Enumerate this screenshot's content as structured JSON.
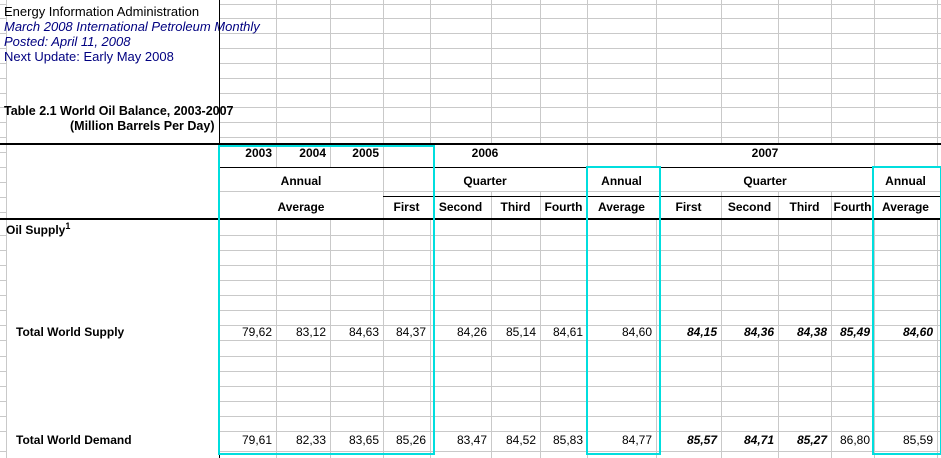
{
  "meta": {
    "info_lines": [
      "Energy Information Administration",
      "March 2008 International Petroleum Monthly",
      "Posted: April 11, 2008",
      "Next Update: Early May 2008"
    ],
    "title": "Table 2.1 World Oil Balance, 2003-2007",
    "subtitle": "(Million Barrels Per Day)"
  },
  "colors": {
    "highlight_border": "#00dede",
    "info_text": "#000080",
    "gridline": "#c9c9c9"
  },
  "header": {
    "years": [
      "2003",
      "2004",
      "2005",
      "2006",
      "2007"
    ],
    "annual_label": "Annual",
    "average_label": "Average",
    "quarter_label": "Quarter",
    "quarters": [
      "First",
      "Second",
      "Third",
      "Fourth"
    ]
  },
  "table": {
    "column_keys": [
      "2003",
      "2004",
      "2005",
      "2006-q1",
      "2006-q2",
      "2006-q3",
      "2006-q4",
      "2006-avg",
      "2007-q1",
      "2007-q2",
      "2007-q3",
      "2007-q4",
      "2007-avg"
    ],
    "rows": [
      {
        "label": "Oil Supply",
        "superscript": "1",
        "values": [],
        "emphasis": []
      },
      {
        "label": "Total World Supply",
        "values": [
          "79,62",
          "83,12",
          "84,63",
          "84,37",
          "84,26",
          "85,14",
          "84,61",
          "84,60",
          "84,15",
          "84,36",
          "84,38",
          "85,49",
          "84,60"
        ],
        "emphasis": [
          0,
          0,
          0,
          0,
          0,
          0,
          0,
          0,
          1,
          1,
          1,
          1,
          1
        ]
      },
      {
        "label": "Total World Demand",
        "values": [
          "79,61",
          "82,33",
          "83,65",
          "85,26",
          "83,47",
          "84,52",
          "85,83",
          "84,77",
          "85,57",
          "84,71",
          "85,27",
          "86,80",
          "85,59"
        ],
        "emphasis": [
          0,
          0,
          0,
          0,
          0,
          0,
          0,
          0,
          1,
          1,
          1,
          0,
          0
        ]
      }
    ]
  }
}
